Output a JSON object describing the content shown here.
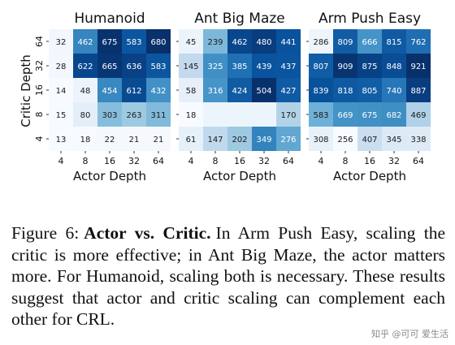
{
  "chart_data": {
    "type": "heatmap",
    "ylabel": "Critic Depth",
    "xlabel": "Actor Depth",
    "x_ticks": [
      "4",
      "8",
      "16",
      "32",
      "64"
    ],
    "y_ticks": [
      "64",
      "32",
      "16",
      "8",
      "4"
    ],
    "panels": [
      {
        "title": "Humanoid",
        "values": [
          [
            32,
            462,
            675,
            583,
            680
          ],
          [
            28,
            622,
            665,
            636,
            583
          ],
          [
            14,
            48,
            454,
            612,
            432
          ],
          [
            15,
            80,
            303,
            263,
            311
          ],
          [
            13,
            18,
            22,
            21,
            21
          ]
        ]
      },
      {
        "title": "Ant Big Maze",
        "values": [
          [
            45,
            239,
            462,
            480,
            441
          ],
          [
            145,
            325,
            385,
            439,
            437
          ],
          [
            58,
            316,
            424,
            504,
            427
          ],
          [
            18,
            null,
            null,
            null,
            170
          ],
          [
            61,
            147,
            202,
            349,
            276
          ]
        ]
      },
      {
        "title": "Arm Push Easy",
        "values": [
          [
            286,
            809,
            666,
            815,
            762
          ],
          [
            807,
            909,
            875,
            848,
            921
          ],
          [
            839,
            818,
            805,
            740,
            887
          ],
          [
            583,
            669,
            675,
            682,
            469
          ],
          [
            308,
            256,
            407,
            345,
            338
          ]
        ]
      }
    ]
  },
  "caption": {
    "label": "Figure 6:",
    "bold": "Actor vs. Critic.",
    "text": "In Arm Push Easy, scaling the critic is more effective; in Ant Big Maze, the actor matters more. For Humanoid, scaling both is necessary. These results suggest that actor and critic scaling can complement each other for CRL."
  },
  "watermark": "知乎 @可可 爱生活"
}
